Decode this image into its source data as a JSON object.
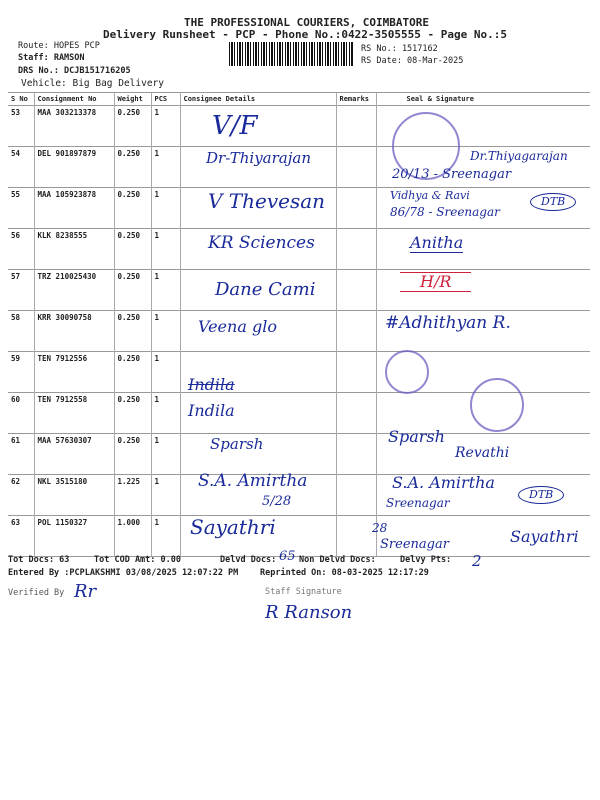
{
  "header": {
    "company": "THE PROFESSIONAL COURIERS, COIMBATORE",
    "subtitle": "Delivery Runsheet - PCP - Phone No.:0422-3505555 - Page No.:5",
    "route": "Route: HOPES PCP",
    "staff": "Staff: RAMSON",
    "drs_no": "DRS No.: DCJB151716205",
    "vehicle": "Vehicle: Big Bag Delivery",
    "rs_no": "RS No.: 1517162",
    "rs_date": "RS Date: 08-Mar-2025"
  },
  "table": {
    "columns": [
      "S No",
      "Consignment No",
      "Weight",
      "PCS",
      "Consignee Details",
      "Remarks",
      "Seal & Signature"
    ],
    "rows": [
      {
        "sno": "53",
        "cn": "MAA 303213378",
        "wt": "0.250",
        "pcs": "1"
      },
      {
        "sno": "54",
        "cn": "DEL 901897879",
        "wt": "0.250",
        "pcs": "1"
      },
      {
        "sno": "55",
        "cn": "MAA 105923878",
        "wt": "0.250",
        "pcs": "1"
      },
      {
        "sno": "56",
        "cn": "KLK 8238555",
        "wt": "0.250",
        "pcs": "1"
      },
      {
        "sno": "57",
        "cn": "TRZ 210025430",
        "wt": "0.250",
        "pcs": "1"
      },
      {
        "sno": "58",
        "cn": "KRR 30090758",
        "wt": "0.250",
        "pcs": "1"
      },
      {
        "sno": "59",
        "cn": "TEN 7912556",
        "wt": "0.250",
        "pcs": "1"
      },
      {
        "sno": "60",
        "cn": "TEN 7912558",
        "wt": "0.250",
        "pcs": "1"
      },
      {
        "sno": "61",
        "cn": "MAA 57630307",
        "wt": "0.250",
        "pcs": "1"
      },
      {
        "sno": "62",
        "cn": "NKL 3515180",
        "wt": "1.225",
        "pcs": "1"
      },
      {
        "sno": "63",
        "cn": "POL 1150327",
        "wt": "1.000",
        "pcs": "1"
      }
    ]
  },
  "handwriting": {
    "c53": "V/F",
    "c54": "Dr-Thiyarajan",
    "c55": "V Thevesan",
    "c56": "KR Sciences",
    "c57": "Dane Cami",
    "c58": "Veena glo",
    "c60a": "Indila",
    "c60b": "Indila",
    "c61": "Sparsh",
    "c62a": "S.A. Amirtha",
    "c62b": "5/28",
    "c63": "Sayathri",
    "s54a": "Dr.Thiyagarajan",
    "s54b": "20/13 - Sreenagar",
    "s55a": "Vidhya & Ravi",
    "s55b": "86/78 - Sreenagar",
    "s55c": "DTB",
    "s56": "Anitha",
    "s57": "H/R",
    "s58": "#Adhithyan R.",
    "s61a": "Sparsh",
    "s61b": "Revathi",
    "s62a": "S.A. Amirtha",
    "s62b": "Sreenagar",
    "s62c": "DTB",
    "s63a": "28",
    "s63b": "Sreenagar",
    "s63c": "Sayathri",
    "delvd": "65",
    "delvy": "2",
    "verified": "Rr",
    "staff_sig": "R Ranson"
  },
  "footer": {
    "tot_docs": "Tot Docs:  63",
    "tot_cod": "Tot COD Amt:    0.00",
    "delvd_docs": "Delvd Docs:",
    "non_delvd": "Non Delvd Docs:",
    "delvy_pts": "Delvy Pts:",
    "entered_by": "Entered By :PCPLAKSHMI 03/08/2025 12:07:22 PM",
    "reprinted": "Reprinted On: 08-03-2025 12:17:29",
    "verified_by": "Verified By",
    "staff_signature": "Staff Signature"
  },
  "colors": {
    "ink": "#1a2a9a",
    "red_ink": "#d0213a",
    "stamp": "#6a5fc0"
  }
}
